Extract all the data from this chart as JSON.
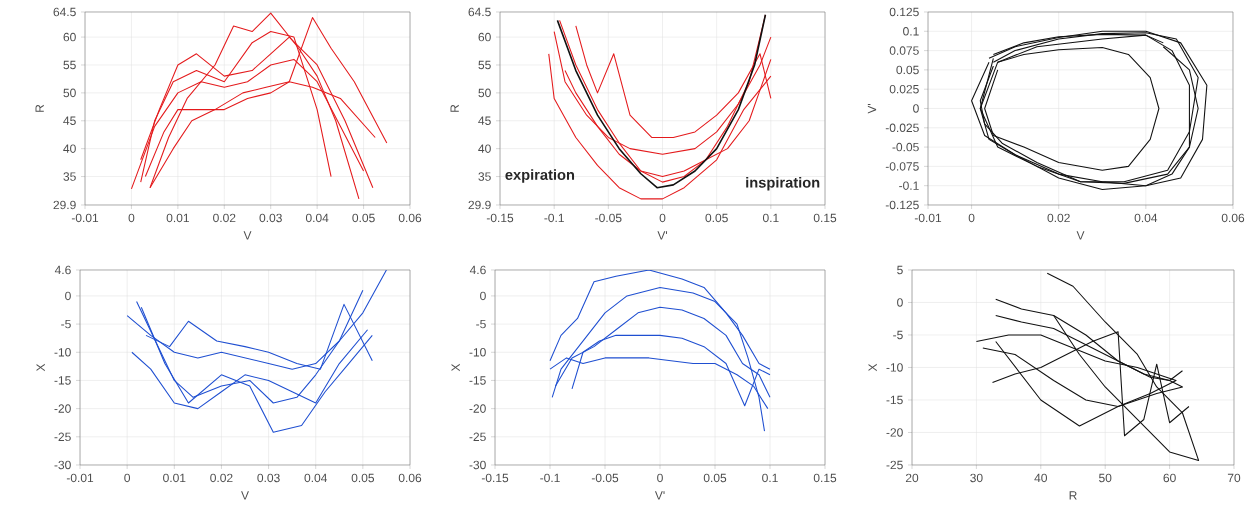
{
  "chart_data": [
    {
      "type": "line",
      "xlabel": "V",
      "ylabel": "R",
      "xlim": [
        -0.01,
        0.06
      ],
      "ylim": [
        29.9,
        64.5
      ],
      "xticks": [
        -0.01,
        0,
        0.01,
        0.02,
        0.03,
        0.04,
        0.05,
        0.06
      ],
      "yticks": [
        29.9,
        35,
        40,
        45,
        50,
        55,
        60,
        64.5
      ],
      "grid": true,
      "series": [
        {
          "color": "#e41a1c",
          "x": [
            0,
            0.005,
            0.01,
            0.015,
            0.02,
            0.025,
            0.03,
            0.035,
            0.04,
            0.045,
            0.05
          ],
          "values": [
            32.8,
            44,
            50,
            52,
            51,
            52,
            55,
            56,
            52,
            44,
            36
          ]
        },
        {
          "color": "#e41a1c",
          "x": [
            0.002,
            0.006,
            0.01,
            0.014,
            0.02,
            0.026,
            0.03,
            0.034,
            0.04,
            0.046,
            0.052
          ],
          "values": [
            38,
            47,
            55,
            57,
            53,
            54,
            57,
            60,
            55,
            45,
            33
          ]
        },
        {
          "color": "#e41a1c",
          "x": [
            0.004,
            0.008,
            0.012,
            0.018,
            0.022,
            0.026,
            0.03,
            0.036,
            0.04,
            0.044,
            0.049
          ],
          "values": [
            33,
            42,
            49,
            55,
            62,
            61,
            64.3,
            58,
            53,
            45,
            31
          ]
        },
        {
          "color": "#e41a1c",
          "x": [
            0.003,
            0.007,
            0.01,
            0.015,
            0.02,
            0.025,
            0.03,
            0.034,
            0.039,
            0.045,
            0.0525
          ],
          "values": [
            35,
            43,
            47,
            47,
            47,
            49,
            50,
            52,
            51,
            49,
            42
          ]
        },
        {
          "color": "#e41a1c",
          "x": [
            0.004,
            0.009,
            0.013,
            0.018,
            0.024,
            0.029,
            0.034,
            0.039,
            0.043,
            0.048,
            0.055
          ],
          "values": [
            33,
            40,
            45,
            47,
            50,
            51,
            52,
            63.5,
            58,
            52,
            41
          ]
        },
        {
          "color": "#e41a1c",
          "x": [
            0.002,
            0.005,
            0.009,
            0.014,
            0.02,
            0.026,
            0.03,
            0.035,
            0.04,
            0.043
          ],
          "values": [
            34,
            45,
            52,
            54,
            52,
            59,
            61,
            60,
            47,
            35
          ]
        }
      ]
    },
    {
      "type": "line",
      "xlabel": "V'",
      "ylabel": "R",
      "xlim": [
        -0.15,
        0.15
      ],
      "ylim": [
        29.9,
        64.5
      ],
      "xticks": [
        -0.15,
        -0.1,
        -0.05,
        0,
        0.05,
        0.1,
        0.15
      ],
      "yticks": [
        29.9,
        35,
        40,
        45,
        50,
        55,
        60,
        64.5
      ],
      "grid": true,
      "annotations": [
        "expiration",
        "inspiration"
      ],
      "series": [
        {
          "color": "#e41a1c",
          "x": [
            -0.095,
            -0.08,
            -0.06,
            -0.04,
            -0.02,
            0,
            0.02,
            0.04,
            0.06,
            0.08,
            0.095
          ],
          "values": [
            63,
            55,
            47,
            41,
            36,
            34,
            35,
            38,
            44,
            52,
            64
          ]
        },
        {
          "color": "#e41a1c",
          "x": [
            -0.1,
            -0.09,
            -0.07,
            -0.05,
            -0.03,
            0,
            0.03,
            0.05,
            0.07,
            0.09,
            0.1
          ],
          "values": [
            61,
            52,
            46,
            42,
            40,
            39,
            40,
            43,
            48,
            55,
            60
          ]
        },
        {
          "color": "#e41a1c",
          "x": [
            -0.105,
            -0.1,
            -0.08,
            -0.06,
            -0.04,
            -0.02,
            0,
            0.02,
            0.05,
            0.075,
            0.1
          ],
          "values": [
            57,
            49,
            42,
            37,
            33,
            31,
            31,
            33,
            38,
            47,
            53
          ]
        },
        {
          "color": "#e41a1c",
          "x": [
            -0.08,
            -0.07,
            -0.06,
            -0.045,
            -0.03,
            -0.01,
            0.01,
            0.03,
            0.05,
            0.07,
            0.09,
            0.1
          ],
          "values": [
            62,
            55,
            50,
            57,
            46,
            42,
            42,
            43,
            46,
            50,
            57,
            49
          ]
        },
        {
          "color": "#e41a1c",
          "x": [
            -0.09,
            -0.08,
            -0.06,
            -0.04,
            -0.02,
            0,
            0.02,
            0.04,
            0.06,
            0.08,
            0.1
          ],
          "values": [
            54,
            50,
            44,
            39,
            36,
            35,
            36,
            38,
            40,
            45,
            56
          ]
        },
        {
          "color": "#111111",
          "x": [
            -0.097,
            -0.08,
            -0.06,
            -0.04,
            -0.02,
            -0.005,
            0.01,
            0.03,
            0.05,
            0.07,
            0.085,
            0.095
          ],
          "values": [
            63,
            54,
            46,
            40,
            35.5,
            33,
            33.5,
            36,
            40,
            47,
            55,
            64
          ]
        }
      ]
    },
    {
      "type": "line",
      "xlabel": "V",
      "ylabel": "V'",
      "xlim": [
        -0.01,
        0.06
      ],
      "ylim": [
        -0.125,
        0.125
      ],
      "xticks": [
        -0.01,
        0,
        0.02,
        0.04,
        0.06
      ],
      "yticks": [
        -0.125,
        -0.1,
        -0.075,
        -0.05,
        -0.025,
        0,
        0.025,
        0.05,
        0.075,
        0.1,
        0.125
      ],
      "grid": true,
      "series": [
        {
          "color": "#111111",
          "x": [
            0.005,
            0.01,
            0.02,
            0.03,
            0.04,
            0.047,
            0.052,
            0.05,
            0.045,
            0.035,
            0.025,
            0.015,
            0.007,
            0.003,
            0.002,
            0.005
          ],
          "values": [
            0.06,
            0.075,
            0.09,
            0.097,
            0.098,
            0.09,
            0.04,
            -0.03,
            -0.08,
            -0.095,
            -0.095,
            -0.07,
            -0.045,
            -0.02,
            0.01,
            0.055
          ]
        },
        {
          "color": "#111111",
          "x": [
            0.004,
            0.01,
            0.02,
            0.03,
            0.04,
            0.048,
            0.054,
            0.053,
            0.048,
            0.04,
            0.03,
            0.02,
            0.01,
            0.003,
            0,
            0.004
          ],
          "values": [
            0.065,
            0.08,
            0.092,
            0.1,
            0.1,
            0.085,
            0.03,
            -0.04,
            -0.09,
            -0.1,
            -0.105,
            -0.09,
            -0.06,
            -0.035,
            0.01,
            0.06
          ]
        },
        {
          "color": "#111111",
          "x": [
            0.006,
            0.012,
            0.02,
            0.03,
            0.036,
            0.041,
            0.043,
            0.041,
            0.036,
            0.03,
            0.02,
            0.012,
            0.005,
            0.003,
            0.006
          ],
          "values": [
            0.06,
            0.07,
            0.076,
            0.079,
            0.07,
            0.04,
            0,
            -0.04,
            -0.075,
            -0.08,
            -0.07,
            -0.05,
            -0.035,
            0,
            0.05
          ]
        },
        {
          "color": "#111111",
          "x": [
            0.005,
            0.012,
            0.02,
            0.03,
            0.04,
            0.046,
            0.05,
            0.05,
            0.045,
            0.035,
            0.025,
            0.015,
            0.006,
            0.002,
            0.005
          ],
          "values": [
            0.07,
            0.085,
            0.093,
            0.096,
            0.095,
            0.075,
            0.03,
            -0.05,
            -0.085,
            -0.097,
            -0.095,
            -0.075,
            -0.05,
            0,
            0.065
          ]
        },
        {
          "color": "#111111",
          "x": [
            0.044,
            0.05,
            0.052,
            0.05,
            0.046,
            0.04,
            0.03,
            0.02,
            0.01,
            0.004,
            0.002,
            0.006,
            0.015,
            0.03,
            0.04,
            0.044
          ],
          "values": [
            0.08,
            0.05,
            0,
            -0.05,
            -0.085,
            -0.1,
            -0.095,
            -0.085,
            -0.06,
            -0.04,
            0,
            0.06,
            0.08,
            0.09,
            0.095,
            0.085
          ]
        }
      ]
    },
    {
      "type": "line",
      "xlabel": "V",
      "ylabel": "X",
      "xlim": [
        -0.01,
        0.06
      ],
      "ylim": [
        -30,
        4.6
      ],
      "xticks": [
        -0.01,
        0,
        0.01,
        0.02,
        0.03,
        0.04,
        0.05,
        0.06
      ],
      "yticks": [
        -30,
        -25,
        -20,
        -15,
        -10,
        -5,
        0,
        4.6
      ],
      "grid": true,
      "series": [
        {
          "color": "#1f4fd1",
          "x": [
            0,
            0.005,
            0.01,
            0.015,
            0.02,
            0.025,
            0.03,
            0.035,
            0.04,
            0.045,
            0.05,
            0.055
          ],
          "values": [
            -3.5,
            -7,
            -10,
            -11,
            -10,
            -11,
            -12,
            -13,
            -12,
            -8,
            -3,
            4.6
          ]
        },
        {
          "color": "#1f4fd1",
          "x": [
            0.002,
            0.006,
            0.01,
            0.014,
            0.02,
            0.026,
            0.031,
            0.036,
            0.04,
            0.045,
            0.05
          ],
          "values": [
            -1,
            -8,
            -15,
            -18,
            -16,
            -15,
            -19,
            -18,
            -14,
            -8,
            1
          ]
        },
        {
          "color": "#1f4fd1",
          "x": [
            0.003,
            0.008,
            0.013,
            0.02,
            0.026,
            0.031,
            0.037,
            0.042,
            0.047,
            0.052
          ],
          "values": [
            -2,
            -12,
            -19,
            -14,
            -16,
            -24.2,
            -23,
            -17,
            -12,
            -7
          ]
        },
        {
          "color": "#1f4fd1",
          "x": [
            0.004,
            0.009,
            0.013,
            0.019,
            0.025,
            0.03,
            0.036,
            0.041,
            0.046,
            0.052
          ],
          "values": [
            -7,
            -9,
            -4.5,
            -8,
            -9,
            -10,
            -12,
            -13,
            -1.5,
            -11.5
          ]
        },
        {
          "color": "#1f4fd1",
          "x": [
            0.001,
            0.005,
            0.01,
            0.015,
            0.02,
            0.025,
            0.03,
            0.035,
            0.04,
            0.045,
            0.051
          ],
          "values": [
            -10,
            -13,
            -19,
            -20,
            -17,
            -14,
            -15,
            -17,
            -19,
            -12,
            -6
          ]
        }
      ]
    },
    {
      "type": "line",
      "xlabel": "V'",
      "ylabel": "X",
      "xlim": [
        -0.15,
        0.15
      ],
      "ylim": [
        -30,
        4.6
      ],
      "xticks": [
        -0.15,
        -0.1,
        -0.05,
        0,
        0.05,
        0.1,
        0.15
      ],
      "yticks": [
        -30,
        -25,
        -20,
        -15,
        -10,
        -5,
        0,
        4.6
      ],
      "grid": true,
      "series": [
        {
          "color": "#1f4fd1",
          "x": [
            -0.1,
            -0.09,
            -0.075,
            -0.06,
            -0.04,
            -0.01,
            0.02,
            0.04,
            0.06,
            0.075,
            0.09,
            0.1
          ],
          "values": [
            -11.5,
            -7,
            -4,
            2.5,
            3.5,
            4.6,
            3,
            1.5,
            -3,
            -7,
            -12,
            -13
          ]
        },
        {
          "color": "#1f4fd1",
          "x": [
            -0.098,
            -0.09,
            -0.07,
            -0.05,
            -0.03,
            0,
            0.03,
            0.05,
            0.07,
            0.08,
            0.09,
            0.095
          ],
          "values": [
            -18,
            -13,
            -8,
            -3,
            0,
            1.5,
            0.5,
            -1,
            -5,
            -11,
            -18,
            -24
          ]
        },
        {
          "color": "#1f4fd1",
          "x": [
            -0.095,
            -0.08,
            -0.06,
            -0.04,
            -0.02,
            0,
            0.02,
            0.04,
            0.06,
            0.075,
            0.09,
            0.1
          ],
          "values": [
            -16,
            -11,
            -9,
            -6,
            -3,
            -2,
            -2.5,
            -4,
            -7,
            -12,
            -14,
            -18
          ]
        },
        {
          "color": "#1f4fd1",
          "x": [
            -0.08,
            -0.07,
            -0.055,
            -0.04,
            -0.02,
            0,
            0.02,
            0.04,
            0.06,
            0.077,
            0.09,
            0.1
          ],
          "values": [
            -16.5,
            -10,
            -8,
            -7,
            -7,
            -7,
            -7.5,
            -9,
            -12,
            -19.5,
            -13,
            -14
          ]
        },
        {
          "color": "#1f4fd1",
          "x": [
            -0.1,
            -0.085,
            -0.07,
            -0.05,
            -0.03,
            -0.01,
            0.01,
            0.03,
            0.05,
            0.07,
            0.085,
            0.098
          ],
          "values": [
            -13,
            -11,
            -12,
            -11,
            -11,
            -11,
            -11.5,
            -12,
            -12,
            -14,
            -16,
            -20
          ]
        }
      ]
    },
    {
      "type": "line",
      "xlabel": "R",
      "ylabel": "X",
      "xlim": [
        20,
        70
      ],
      "ylim": [
        -25,
        5
      ],
      "xticks": [
        20,
        30,
        40,
        50,
        60,
        70
      ],
      "yticks": [
        -25,
        -20,
        -15,
        -10,
        -5,
        0,
        5
      ],
      "grid": true,
      "series": [
        {
          "color": "#111111",
          "x": [
            41,
            45,
            50,
            55,
            58,
            62,
            64.5,
            60,
            55,
            50,
            46,
            42
          ],
          "values": [
            4.5,
            2.5,
            -3,
            -8,
            -13,
            -17,
            -24.3,
            -23,
            -18,
            -13,
            -8,
            -2
          ]
        },
        {
          "color": "#111111",
          "x": [
            33,
            37,
            42,
            47,
            52,
            56,
            60,
            62,
            58,
            52,
            46,
            40,
            33
          ],
          "values": [
            0.5,
            -1,
            -2,
            -5,
            -9,
            -11,
            -12,
            -13,
            -14,
            -16,
            -19,
            -15,
            -6
          ]
        },
        {
          "color": "#111111",
          "x": [
            30,
            35,
            40,
            45,
            50,
            55,
            58,
            61,
            57,
            52,
            47,
            42,
            36,
            31
          ],
          "values": [
            -6,
            -5,
            -5,
            -7,
            -9,
            -10,
            -11,
            -12,
            -14,
            -16,
            -15,
            -12,
            -8,
            -7
          ]
        },
        {
          "color": "#111111",
          "x": [
            32.5,
            36,
            40,
            44,
            48,
            52,
            53,
            56,
            58,
            60,
            63
          ],
          "values": [
            -12.3,
            -11,
            -10,
            -8,
            -6,
            -4.5,
            -20.5,
            -18,
            -9.5,
            -18.5,
            -16
          ]
        },
        {
          "color": "#111111",
          "x": [
            33,
            37,
            42,
            46,
            50,
            54,
            57,
            60,
            62
          ],
          "values": [
            -2,
            -3,
            -4,
            -6,
            -8,
            -10,
            -11.5,
            -12,
            -10.5
          ]
        }
      ]
    }
  ]
}
